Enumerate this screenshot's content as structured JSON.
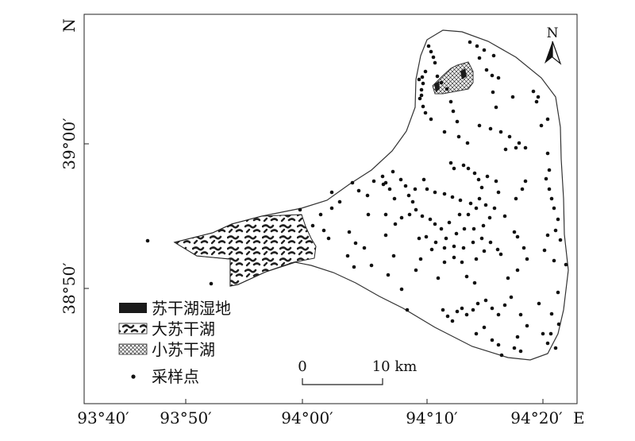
{
  "map": {
    "axis": {
      "x_ticks": [
        "93°40′",
        "93°50′",
        "94°00′",
        "94°10′",
        "94°20′"
      ],
      "x_unit": "E",
      "y_ticks": [
        "39°00′",
        "38°50′"
      ],
      "y_unit": "N"
    },
    "north_arrow": "N",
    "scale_bar": {
      "start": "0",
      "end": "10 km"
    },
    "legend": [
      {
        "label": "苏干湖湿地",
        "symbol": "solid-fill"
      },
      {
        "label": "大苏干湖",
        "symbol": "dash-hatch"
      },
      {
        "label": "小苏干湖",
        "symbol": "cross-hatch"
      },
      {
        "label": "采样点",
        "symbol": "dot"
      }
    ],
    "colors": {
      "wetland": "#1a1a1a",
      "lake_hatch": "#222222",
      "boundary": "#333333"
    },
    "sample_points": [
      [
        540,
        58
      ],
      [
        543,
        65
      ],
      [
        546,
        72
      ],
      [
        548,
        79
      ],
      [
        536,
        90
      ],
      [
        532,
        97
      ],
      [
        533,
        105
      ],
      [
        531,
        113
      ],
      [
        529,
        124
      ],
      [
        533,
        134
      ],
      [
        536,
        142
      ],
      [
        543,
        150
      ],
      [
        563,
        112
      ],
      [
        568,
        128
      ],
      [
        571,
        140
      ],
      [
        576,
        153
      ],
      [
        592,
        53
      ],
      [
        601,
        58
      ],
      [
        610,
        63
      ],
      [
        622,
        70
      ],
      [
        620,
        95
      ],
      [
        628,
        98
      ],
      [
        621,
        116
      ],
      [
        625,
        135
      ],
      [
        646,
        122
      ],
      [
        672,
        115
      ],
      [
        678,
        122
      ],
      [
        690,
        150
      ],
      [
        682,
        158
      ],
      [
        560,
        166
      ],
      [
        578,
        172
      ],
      [
        589,
        180
      ],
      [
        604,
        158
      ],
      [
        618,
        162
      ],
      [
        631,
        166
      ],
      [
        642,
        172
      ],
      [
        654,
        180
      ],
      [
        637,
        188
      ],
      [
        650,
        186
      ],
      [
        662,
        186
      ],
      [
        690,
        193
      ],
      [
        688,
        225
      ],
      [
        692,
        238
      ],
      [
        695,
        250
      ],
      [
        698,
        262
      ],
      [
        703,
        276
      ],
      [
        700,
        290
      ],
      [
        706,
        302
      ],
      [
        686,
        315
      ],
      [
        713,
        333
      ],
      [
        703,
        368
      ],
      [
        568,
        205
      ],
      [
        572,
        212
      ],
      [
        584,
        208
      ],
      [
        590,
        212
      ],
      [
        598,
        218
      ],
      [
        603,
        226
      ],
      [
        607,
        236
      ],
      [
        614,
        222
      ],
      [
        625,
        228
      ],
      [
        628,
        242
      ],
      [
        534,
        226
      ],
      [
        538,
        238
      ],
      [
        548,
        242
      ],
      [
        560,
        244
      ],
      [
        570,
        248
      ],
      [
        580,
        252
      ],
      [
        593,
        256
      ],
      [
        604,
        250
      ],
      [
        612,
        258
      ],
      [
        623,
        262
      ],
      [
        636,
        272
      ],
      [
        617,
        274
      ],
      [
        609,
        284
      ],
      [
        597,
        288
      ],
      [
        585,
        288
      ],
      [
        575,
        294
      ],
      [
        562,
        300
      ],
      [
        549,
        305
      ],
      [
        560,
        312
      ],
      [
        572,
        310
      ],
      [
        584,
        312
      ],
      [
        596,
        305
      ],
      [
        607,
        300
      ],
      [
        618,
        305
      ],
      [
        627,
        314
      ],
      [
        631,
        320
      ],
      [
        520,
        254
      ],
      [
        524,
        264
      ],
      [
        532,
        272
      ],
      [
        542,
        276
      ],
      [
        548,
        282
      ],
      [
        556,
        288
      ],
      [
        566,
        280
      ],
      [
        579,
        270
      ],
      [
        590,
        270
      ],
      [
        600,
        262
      ],
      [
        650,
        250
      ],
      [
        658,
        238
      ],
      [
        662,
        228
      ],
      [
        648,
        292
      ],
      [
        652,
        298
      ],
      [
        660,
        312
      ],
      [
        664,
        326
      ],
      [
        652,
        340
      ],
      [
        640,
        350
      ],
      [
        482,
        222
      ],
      [
        486,
        230
      ],
      [
        491,
        238
      ],
      [
        483,
        232
      ],
      [
        495,
        216
      ],
      [
        505,
        226
      ],
      [
        511,
        234
      ],
      [
        515,
        246
      ],
      [
        523,
        238
      ],
      [
        497,
        250
      ],
      [
        444,
        230
      ],
      [
        452,
        240
      ],
      [
        463,
        246
      ],
      [
        471,
        228
      ],
      [
        464,
        270
      ],
      [
        486,
        270
      ],
      [
        498,
        282
      ],
      [
        506,
        274
      ],
      [
        516,
        270
      ],
      [
        528,
        300
      ],
      [
        537,
        298
      ],
      [
        544,
        314
      ],
      [
        530,
        326
      ],
      [
        524,
        340
      ],
      [
        552,
        350
      ],
      [
        560,
        330
      ],
      [
        572,
        324
      ],
      [
        582,
        330
      ],
      [
        588,
        348
      ],
      [
        598,
        356
      ],
      [
        600,
        326
      ],
      [
        610,
        316
      ],
      [
        440,
        292
      ],
      [
        448,
        306
      ],
      [
        438,
        322
      ],
      [
        446,
        336
      ],
      [
        459,
        312
      ],
      [
        468,
        334
      ],
      [
        486,
        296
      ],
      [
        496,
        322
      ],
      [
        489,
        346
      ],
      [
        506,
        364
      ],
      [
        513,
        390
      ],
      [
        558,
        390
      ],
      [
        564,
        398
      ],
      [
        570,
        404
      ],
      [
        576,
        392
      ],
      [
        582,
        388
      ],
      [
        588,
        396
      ],
      [
        596,
        390
      ],
      [
        602,
        382
      ],
      [
        612,
        378
      ],
      [
        620,
        388
      ],
      [
        628,
        396
      ],
      [
        636,
        384
      ],
      [
        644,
        374
      ],
      [
        656,
        396
      ],
      [
        664,
        410
      ],
      [
        652,
        424
      ],
      [
        620,
        428
      ],
      [
        628,
        434
      ],
      [
        600,
        420
      ],
      [
        610,
        412
      ],
      [
        684,
        420
      ],
      [
        690,
        432
      ],
      [
        694,
        420
      ],
      [
        679,
        382
      ],
      [
        695,
        395
      ],
      [
        704,
        408
      ],
      [
        700,
        438
      ],
      [
        648,
        438
      ],
      [
        656,
        442
      ],
      [
        632,
        447
      ],
      [
        418,
        262
      ],
      [
        404,
        270
      ],
      [
        408,
        290
      ],
      [
        414,
        300
      ],
      [
        394,
        284
      ],
      [
        378,
        264
      ],
      [
        418,
        242
      ],
      [
        428,
        254
      ],
      [
        186,
        303
      ],
      [
        266,
        357
      ],
      [
        528,
        100
      ],
      [
        531,
        120
      ],
      [
        551,
        96
      ],
      [
        556,
        104
      ],
      [
        604,
        73
      ],
      [
        613,
        88
      ],
      [
        676,
        128
      ],
      [
        692,
        214
      ],
      [
        690,
        296
      ],
      [
        698,
        328
      ]
    ]
  }
}
